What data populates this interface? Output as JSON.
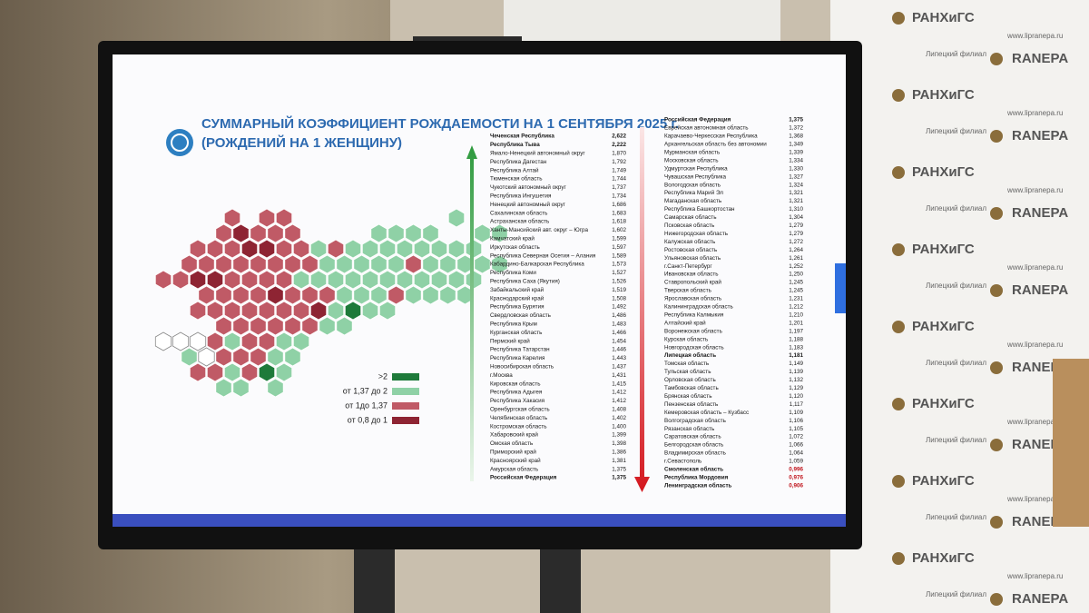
{
  "slide": {
    "title": [
      "СУММАРНЫЙ КОЭФФИЦИЕНТ РОЖДАЕМОСТИ НА 1 СЕНТЯБРЯ 2025 г.",
      "(РОЖДЕНИЙ НА 1 ЖЕНЩИНУ)"
    ],
    "legend": [
      ">2",
      "от 1,37 до 2",
      "от 1до 1,37",
      "от 0,8 до 1"
    ],
    "table_left": {
      "rows": [
        [
          "Чеченская Республика",
          "2,622"
        ],
        [
          "Республика Тыва",
          "2,222"
        ],
        [
          "Ямало-Ненецкий автономный округ",
          "1,870"
        ],
        [
          "Республика Дагестан",
          "1,792"
        ],
        [
          "Республика Алтай",
          "1,749"
        ],
        [
          "Тюменская область",
          "1,744"
        ],
        [
          "Чукотский автономный округ",
          "1,737"
        ],
        [
          "Республика Ингушетия",
          "1,734"
        ],
        [
          "Ненецкий автономный округ",
          "1,686"
        ],
        [
          "Сахалинская область",
          "1,683"
        ],
        [
          "Астраханская область",
          "1,618"
        ],
        [
          "Ханты-Мансийский авт. округ – Югра",
          "1,602"
        ],
        [
          "Камчатский край",
          "1,599"
        ],
        [
          "Иркутская область",
          "1,597"
        ],
        [
          "Республика Северная Осетия – Алания",
          "1,589"
        ],
        [
          "Кабардино-Балкарская Республика",
          "1,573"
        ],
        [
          "Республика Коми",
          "1,527"
        ],
        [
          "Республика Саха (Якутия)",
          "1,526"
        ],
        [
          "Забайкальский край",
          "1,519"
        ],
        [
          "Краснодарский край",
          "1,508"
        ],
        [
          "Республика Бурятия",
          "1,492"
        ],
        [
          "Свердловская область",
          "1,486"
        ],
        [
          "Республика Крым",
          "1,483"
        ],
        [
          "Курганская область",
          "1,466"
        ],
        [
          "Пермский край",
          "1,454"
        ],
        [
          "Республика Татарстан",
          "1,446"
        ],
        [
          "Республика Карелия",
          "1,443"
        ],
        [
          "Новосибирская область",
          "1,437"
        ],
        [
          "г.Москва",
          "1,431"
        ],
        [
          "Кировская область",
          "1,415"
        ],
        [
          "Республика Адыгея",
          "1,412"
        ],
        [
          "Республика Хакасия",
          "1,412"
        ],
        [
          "Оренбургская область",
          "1,408"
        ],
        [
          "Челябинская область",
          "1,402"
        ],
        [
          "Костромская область",
          "1,400"
        ],
        [
          "Хабаровский край",
          "1,399"
        ],
        [
          "Омская область",
          "1,398"
        ],
        [
          "Приморский край",
          "1,386"
        ],
        [
          "Красноярский край",
          "1,381"
        ],
        [
          "Амурская область",
          "1,375"
        ],
        [
          "Российская Федерация",
          "1,375"
        ]
      ]
    },
    "table_right": {
      "rows": [
        [
          "Российская Федерация",
          "1,375"
        ],
        [
          "Еврейская автономная область",
          "1,372"
        ],
        [
          "Карачаево-Черкесская Республика",
          "1,368"
        ],
        [
          "Архангельская область без автономии",
          "1,349"
        ],
        [
          "Мурманская область",
          "1,339"
        ],
        [
          "Московская область",
          "1,334"
        ],
        [
          "Удмуртская Республика",
          "1,330"
        ],
        [
          "Чувашская Республика",
          "1,327"
        ],
        [
          "Вологодская область",
          "1,324"
        ],
        [
          "Республика Марий Эл",
          "1,321"
        ],
        [
          "Магаданская область",
          "1,321"
        ],
        [
          "Республика Башкортостан",
          "1,310"
        ],
        [
          "Самарская область",
          "1,304"
        ],
        [
          "Псковская область",
          "1,279"
        ],
        [
          "Нижегородская область",
          "1,279"
        ],
        [
          "Калужская область",
          "1,272"
        ],
        [
          "Ростовская область",
          "1,264"
        ],
        [
          "Ульяновская область",
          "1,261"
        ],
        [
          "г.Санкт-Петербург",
          "1,252"
        ],
        [
          "Ивановская область",
          "1,250"
        ],
        [
          "Ставропольский край",
          "1,245"
        ],
        [
          "Тверская область",
          "1,245"
        ],
        [
          "Ярославская область",
          "1,231"
        ],
        [
          "Калининградская область",
          "1,212"
        ],
        [
          "Республика Калмыкия",
          "1,210"
        ],
        [
          "Алтайский край",
          "1,201"
        ],
        [
          "Воронежская область",
          "1,197"
        ],
        [
          "Курская область",
          "1,188"
        ],
        [
          "Новгородская область",
          "1,183"
        ],
        [
          "Липецкая область",
          "1,181"
        ],
        [
          "Томская область",
          "1,149"
        ],
        [
          "Тульская область",
          "1,139"
        ],
        [
          "Орловская область",
          "1,132"
        ],
        [
          "Тамбовская область",
          "1,129"
        ],
        [
          "Брянская область",
          "1,120"
        ],
        [
          "Пензенская область",
          "1,117"
        ],
        [
          "Кемеровская область – Кузбасс",
          "1,109"
        ],
        [
          "Волгоградская область",
          "1,106"
        ],
        [
          "Рязанская область",
          "1,105"
        ],
        [
          "Саратовская область",
          "1,072"
        ],
        [
          "Белгородская область",
          "1,066"
        ],
        [
          "Владимирская область",
          "1,064"
        ],
        [
          "г.Севастополь",
          "1,059"
        ],
        [
          "Смоленская область",
          "0,996"
        ],
        [
          "Республика Мордовия",
          "0,976"
        ],
        [
          "Ленинградская область",
          "0,906"
        ]
      ]
    }
  },
  "wall": {
    "ranepa": "RANEPA",
    "ranhigs": "РАНХиГС",
    "branch": "Липецкий филиал",
    "site": "www.lipranepa.ru"
  }
}
